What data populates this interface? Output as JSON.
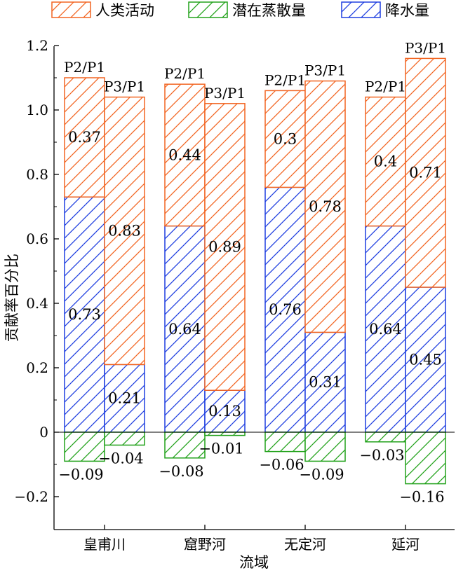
{
  "chart_data": {
    "type": "bar",
    "subtype": "stacked-grouped-hatched",
    "xlabel": "流域",
    "ylabel": "贡献率百分比",
    "ylim": [
      -0.22,
      1.2
    ],
    "yticks": [
      -0.2,
      0,
      0.2,
      0.4,
      0.6,
      0.8,
      1.0,
      1.2
    ],
    "ytick_labels": [
      "−0.2",
      "0",
      "0.2",
      "0.4",
      "0.6",
      "0.8",
      "1.0",
      "1.2"
    ],
    "legend_position": "top",
    "categories": [
      "皇甫川",
      "窟野河",
      "无定河",
      "延河"
    ],
    "periods": [
      "P2/P1",
      "P3/P1"
    ],
    "series": [
      {
        "name": "人类活动",
        "color": "#f26522",
        "hatch": "forward-diagonal",
        "values": [
          [
            0.37,
            0.83
          ],
          [
            0.44,
            0.89
          ],
          [
            0.3,
            0.78
          ],
          [
            0.4,
            0.71
          ]
        ]
      },
      {
        "name": "潜在蒸散量",
        "color": "#22a21b",
        "hatch": "forward-diagonal",
        "values": [
          [
            -0.09,
            -0.04
          ],
          [
            -0.08,
            -0.01
          ],
          [
            -0.06,
            -0.09
          ],
          [
            -0.03,
            -0.16
          ]
        ]
      },
      {
        "name": "降水量",
        "color": "#1f3fe0",
        "hatch": "forward-diagonal",
        "values": [
          [
            0.73,
            0.21
          ],
          [
            0.64,
            0.13
          ],
          [
            0.76,
            0.31
          ],
          [
            0.64,
            0.45
          ]
        ]
      }
    ],
    "data_labels": {
      "人类活动": [
        [
          "0.37",
          "0.83"
        ],
        [
          "0.44",
          "0.89"
        ],
        [
          "0.3",
          "0.78"
        ],
        [
          "0.4",
          "0.71"
        ]
      ],
      "潜在蒸散量": [
        [
          "−0.09",
          "−0.04"
        ],
        [
          "−0.08",
          "−0.01"
        ],
        [
          "−0.06",
          "−0.09"
        ],
        [
          "−0.03",
          "−0.16"
        ]
      ],
      "降水量": [
        [
          "0.73",
          "0.21"
        ],
        [
          "0.64",
          "0.13"
        ],
        [
          "0.76",
          "0.31"
        ],
        [
          "0.64",
          "0.45"
        ]
      ]
    }
  }
}
